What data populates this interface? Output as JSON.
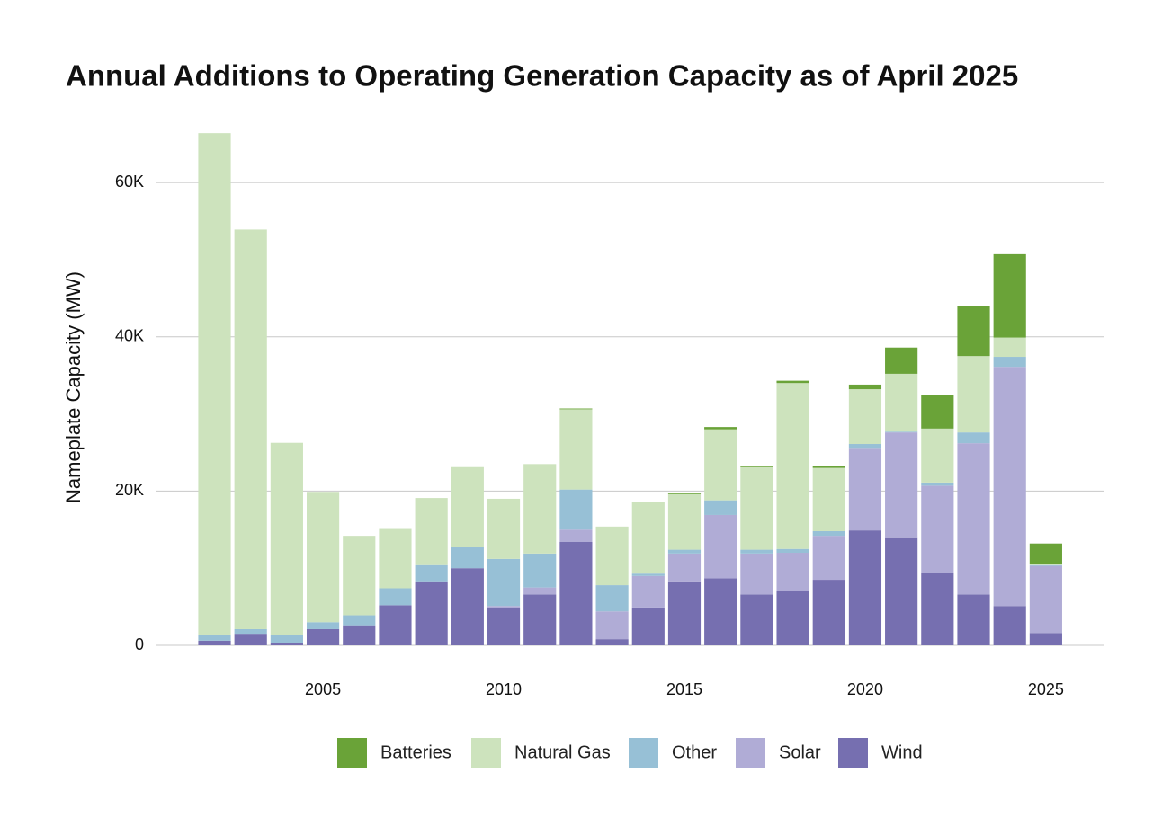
{
  "chart_data": {
    "type": "stacked-bar",
    "title": "Annual Additions to Operating Generation Capacity as of April 2025",
    "y_label": "Nameplate Capacity (MW)",
    "x": [
      2002,
      2003,
      2004,
      2005,
      2006,
      2007,
      2008,
      2009,
      2010,
      2011,
      2012,
      2013,
      2014,
      2015,
      2016,
      2017,
      2018,
      2019,
      2020,
      2021,
      2022,
      2023,
      2024,
      2025
    ],
    "xlim": [
      2000.37,
      2026.62
    ],
    "xticks": [
      2005,
      2010,
      2015,
      2020,
      2025
    ],
    "ylim": [
      0,
      67000
    ],
    "yticks": [
      0,
      {
        "value": 20000,
        "label": "20K"
      },
      {
        "value": 40000,
        "label": "40K"
      },
      {
        "value": 60000,
        "label": "60K"
      }
    ],
    "grid": true,
    "legend": "bottom",
    "series": [
      {
        "name": "Batteries",
        "color": "#6aa338",
        "values": [
          0,
          0,
          0,
          0,
          0,
          0,
          0,
          0,
          0,
          0,
          100,
          0,
          0,
          100,
          300,
          100,
          300,
          300,
          600,
          3400,
          4300,
          6500,
          10800,
          2700
        ]
      },
      {
        "name": "Natural Gas",
        "color": "#cde3bd",
        "values": [
          65000,
          51800,
          24900,
          16900,
          10300,
          7800,
          8700,
          10400,
          7800,
          11600,
          10400,
          7600,
          9300,
          7200,
          9200,
          10700,
          21500,
          8200,
          7100,
          7500,
          7000,
          9900,
          2500,
          100
        ]
      },
      {
        "name": "Other",
        "color": "#97c0d6",
        "values": [
          800,
          600,
          1000,
          900,
          1300,
          2200,
          2100,
          2700,
          6100,
          4400,
          5200,
          3400,
          300,
          500,
          1900,
          500,
          500,
          600,
          500,
          100,
          400,
          1400,
          1300,
          100
        ]
      },
      {
        "name": "Solar",
        "color": "#b0acd6",
        "values": [
          0,
          0,
          0,
          0,
          0,
          0,
          0,
          0,
          300,
          900,
          1600,
          3600,
          4100,
          3600,
          8200,
          5300,
          4900,
          5700,
          10700,
          13700,
          11300,
          19600,
          31000,
          8700
        ]
      },
      {
        "name": "Wind",
        "color": "#766fb0",
        "values": [
          600,
          1500,
          350,
          2100,
          2600,
          5200,
          8300,
          10000,
          4800,
          6600,
          13400,
          800,
          4900,
          8300,
          8700,
          6600,
          7100,
          8500,
          14900,
          13900,
          9400,
          6600,
          5100,
          1600
        ]
      }
    ]
  }
}
